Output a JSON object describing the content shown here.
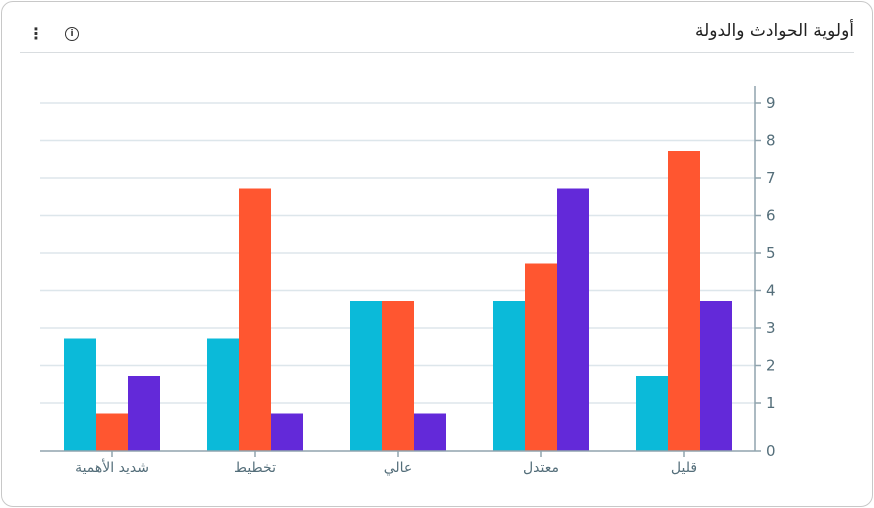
{
  "header": {
    "title": "أولوية الحوادث والدولة",
    "menu_icon": "more-vert-icon",
    "info_icon": "info-icon"
  },
  "chart_data": {
    "type": "bar",
    "title": "أولوية الحوادث والدولة",
    "direction": "rtl",
    "y_axis_position": "right",
    "categories": [
      "قليل",
      "معتدل",
      "عالي",
      "تخطيط",
      "شديد الأهمية"
    ],
    "series": [
      {
        "color": "#0bbad9",
        "values": [
          2,
          4,
          4,
          3,
          3
        ]
      },
      {
        "color": "#ff5630",
        "values": [
          8,
          5,
          4,
          7,
          1
        ]
      },
      {
        "color": "#6329d9",
        "values": [
          4,
          7,
          1,
          1,
          2
        ]
      }
    ],
    "yticks": [
      0,
      1,
      2,
      3,
      4,
      5,
      6,
      7,
      8,
      9
    ],
    "ylim": [
      0,
      9
    ],
    "grid": true,
    "legend": "none"
  }
}
